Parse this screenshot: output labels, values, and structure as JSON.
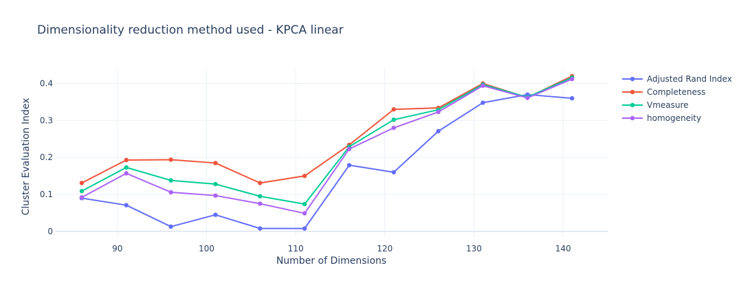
{
  "chart_data": {
    "type": "line",
    "title": "Dimensionality reduction method used - KPCA linear",
    "xlabel": "Number of Dimensions",
    "ylabel": "Cluster Evaluation Index",
    "xlim": [
      83,
      145
    ],
    "ylim": [
      -0.015,
      0.44
    ],
    "x_ticks": [
      90,
      100,
      110,
      120,
      130,
      140
    ],
    "y_ticks": [
      0,
      0.1,
      0.2,
      0.3,
      0.4
    ],
    "y_tick_labels": [
      "0",
      "0.1",
      "0.2",
      "0.3",
      "0.4"
    ],
    "grid": true,
    "legend_position": "top-right",
    "x": [
      86,
      91,
      96,
      101,
      106,
      111,
      116,
      121,
      126,
      131,
      136,
      141
    ],
    "series": [
      {
        "name": "Adjusted Rand Index",
        "color": "#636efa",
        "values": [
          0.09,
          0.071,
          0.013,
          0.045,
          0.008,
          0.008,
          0.179,
          0.16,
          0.271,
          0.348,
          0.37,
          0.36
        ]
      },
      {
        "name": "Completeness",
        "color": "#ef553b",
        "values": [
          0.131,
          0.193,
          0.194,
          0.185,
          0.131,
          0.15,
          0.234,
          0.33,
          0.334,
          0.4,
          0.362,
          0.42
        ]
      },
      {
        "name": "Vmeasure",
        "color": "#00cc96",
        "values": [
          0.109,
          0.173,
          0.138,
          0.128,
          0.095,
          0.074,
          0.229,
          0.302,
          0.329,
          0.397,
          0.363,
          0.416
        ]
      },
      {
        "name": "homogeneity",
        "color": "#ab63fa",
        "values": [
          0.092,
          0.157,
          0.106,
          0.097,
          0.075,
          0.049,
          0.223,
          0.28,
          0.323,
          0.394,
          0.361,
          0.412
        ]
      }
    ]
  }
}
